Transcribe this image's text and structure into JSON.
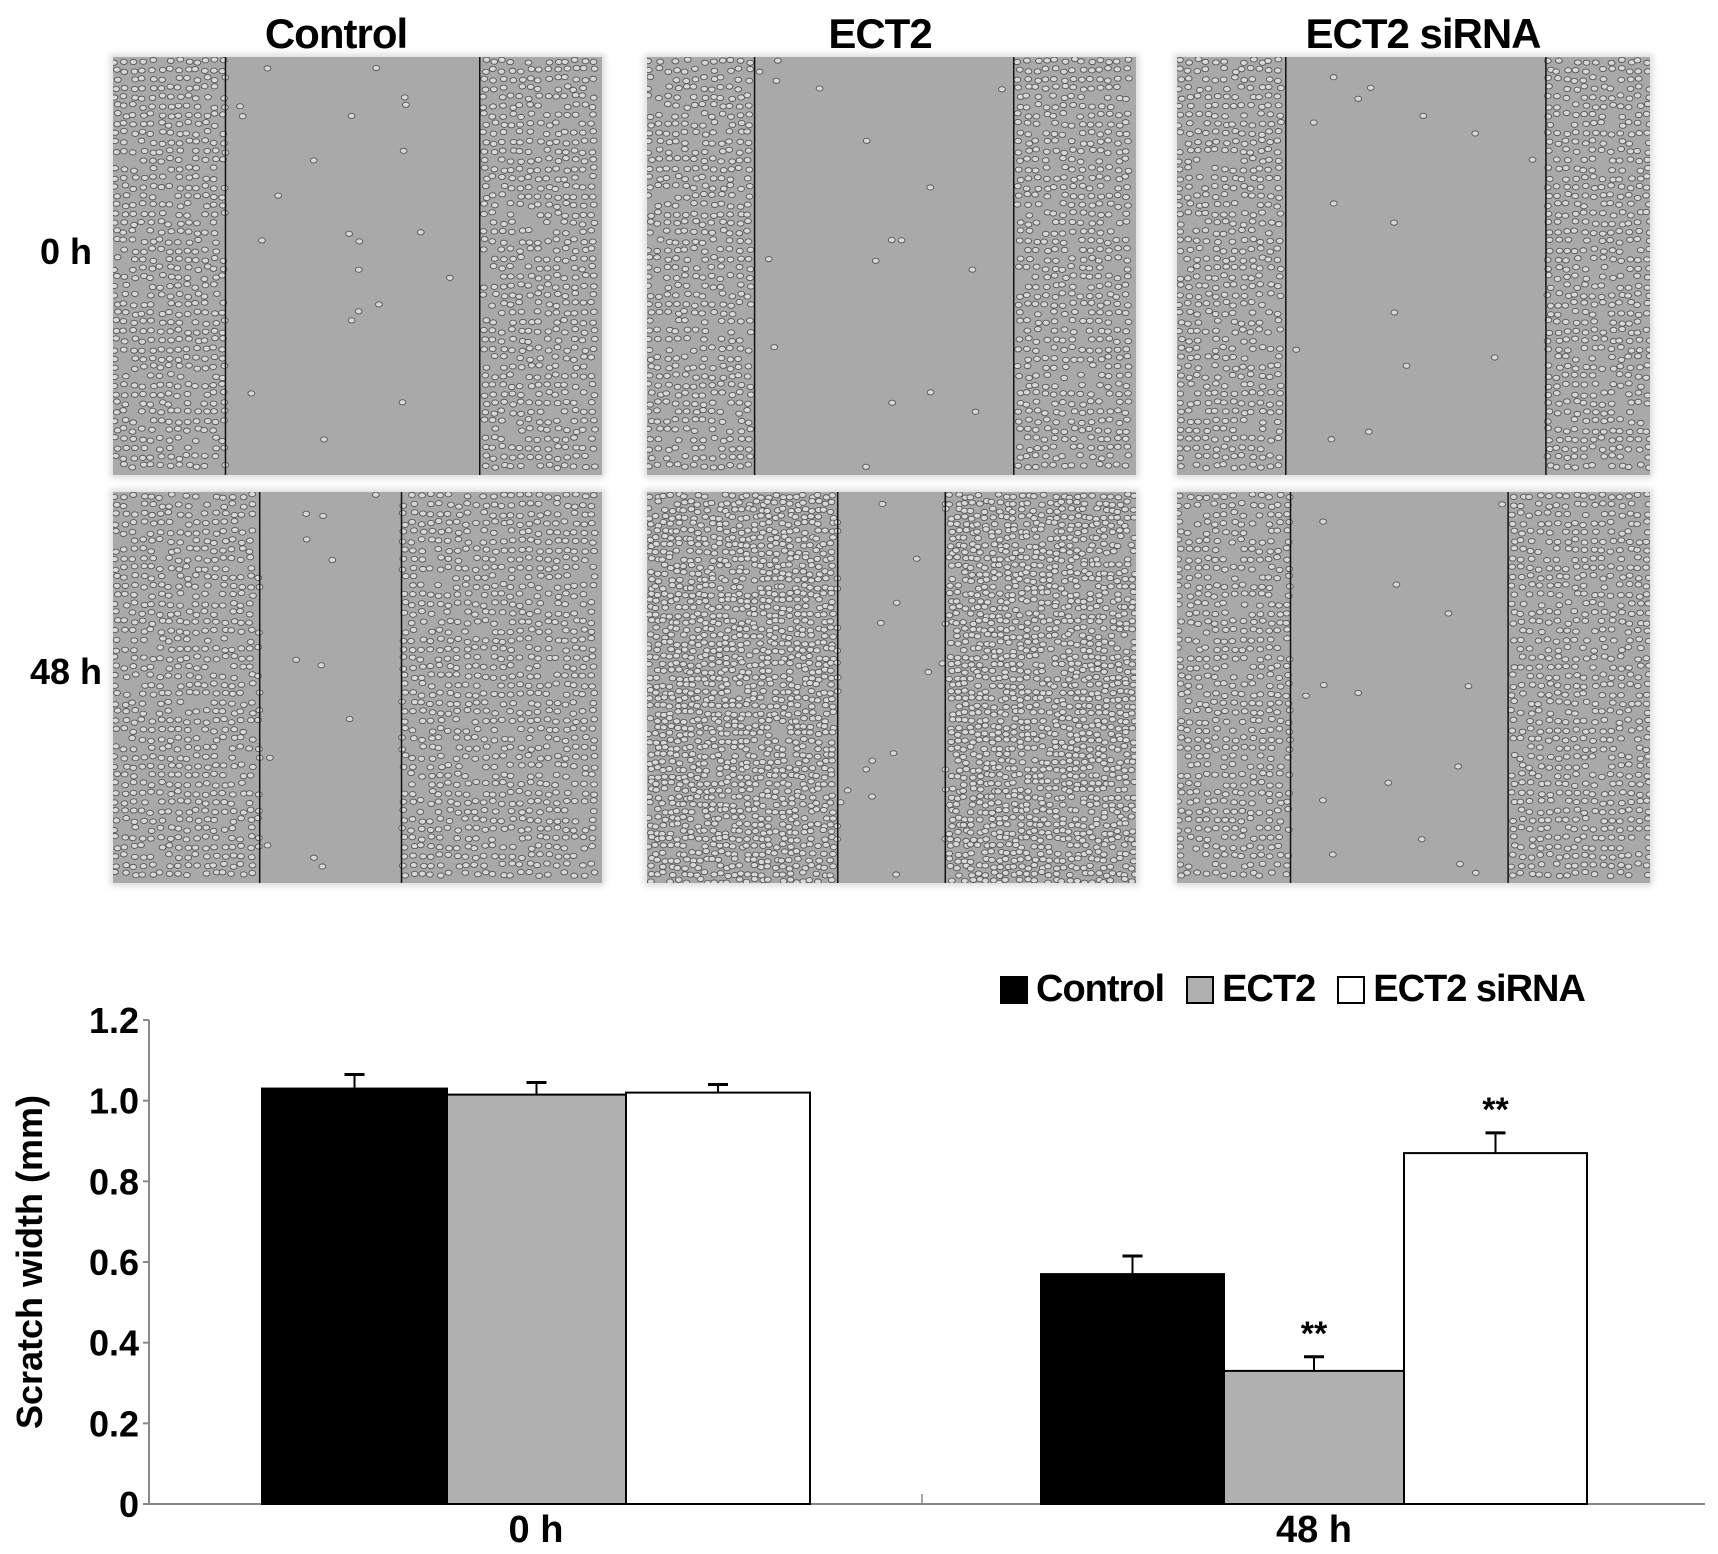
{
  "figure": {
    "column_titles": [
      "Control",
      "ECT2",
      "ECT2 siRNA"
    ],
    "row_labels": [
      "0 h",
      "48 h"
    ]
  },
  "chart_data": {
    "type": "bar",
    "categories": [
      "0 h",
      "48 h"
    ],
    "ylabel": "Scratch width (mm)",
    "xlabel": "",
    "ylim": [
      0,
      1.2
    ],
    "yticks": [
      "0",
      "0.2",
      "0.4",
      "0.6",
      "0.8",
      "1.0",
      "1.2"
    ],
    "legend_position": "top-right",
    "grid": false,
    "series": [
      {
        "name": "Control",
        "color": "#000000",
        "values": [
          1.03,
          0.57
        ],
        "errors": [
          0.035,
          0.045
        ],
        "annotations": [
          "",
          ""
        ]
      },
      {
        "name": "ECT2",
        "color": "#b0b0b0",
        "values": [
          1.015,
          0.33
        ],
        "errors": [
          0.03,
          0.035
        ],
        "annotations": [
          "",
          "**"
        ]
      },
      {
        "name": "ECT2 siRNA",
        "color": "#ffffff",
        "values": [
          1.02,
          0.87
        ],
        "errors": [
          0.02,
          0.05
        ],
        "annotations": [
          "",
          "**"
        ]
      }
    ]
  }
}
